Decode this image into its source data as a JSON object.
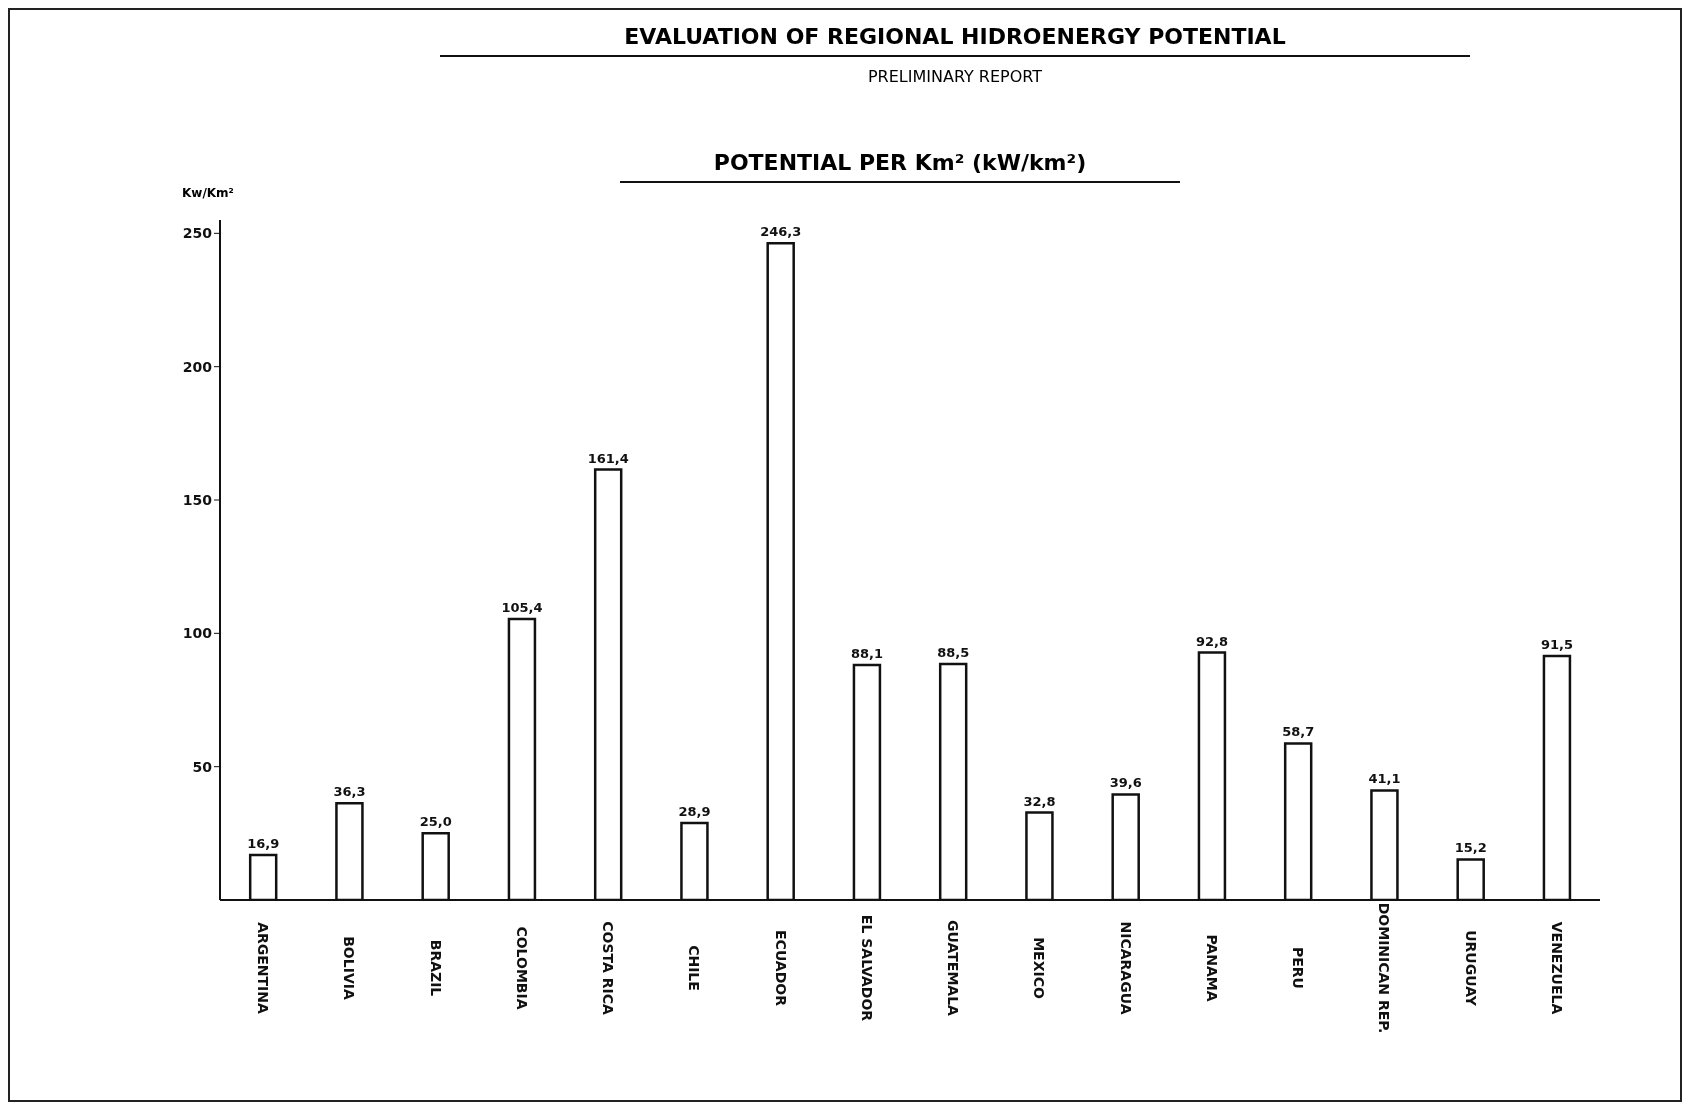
{
  "chart_data": {
    "type": "bar",
    "title": "EVALUATION OF REGIONAL HIDROENERGY POTENTIAL",
    "subtitle": "PRELIMINARY REPORT",
    "annotations": [
      "POTENTIAL PER Km² (kW/km²)"
    ],
    "ylabel": "Kw/Km²",
    "categories": [
      "ARGENTINA",
      "BOLIVIA",
      "BRAZIL",
      "COLOMBIA",
      "COSTA  RICA",
      "CHILE",
      "ECUADOR",
      "EL SALVADOR",
      "GUATEMALA",
      "MEXICO",
      "NICARAGUA",
      "PANAMA",
      "PERU",
      "DOMINICAN REP.",
      "URUGUAY",
      "VENEZUELA"
    ],
    "values": [
      16.9,
      36.3,
      25.0,
      105.4,
      161.4,
      28.9,
      246.3,
      88.1,
      88.5,
      32.8,
      39.6,
      92.8,
      58.7,
      41.1,
      15.2,
      91.5
    ],
    "value_labels": [
      "16,9",
      "36,3",
      "25,0",
      "105,4",
      "161,4",
      "28,9",
      "246,3",
      "88,1",
      "88,5",
      "32,8",
      "39,6",
      "92,8",
      "58,7",
      "41,1",
      "15,2",
      "91,5"
    ],
    "color": "#ffffff",
    "ylim": [
      0,
      255
    ],
    "yticks": [
      50,
      100,
      150,
      200,
      250
    ],
    "grid": false,
    "legend": false
  }
}
